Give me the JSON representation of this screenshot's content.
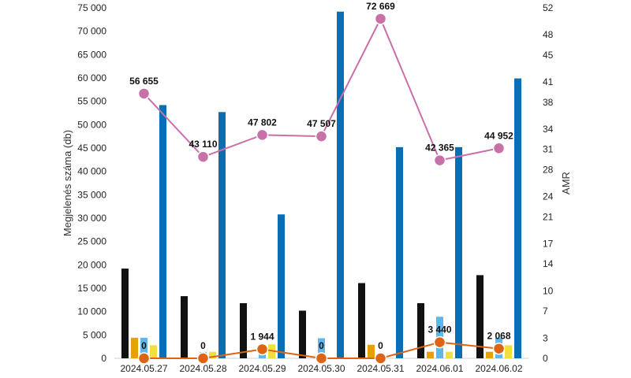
{
  "chart_data": {
    "type": "bar",
    "categories": [
      "2024.05.27",
      "2024.05.28",
      "2024.05.29",
      "2024.05.30",
      "2024.05.31",
      "2024.06.01",
      "2024.06.02"
    ],
    "ylabel": "Megjelenés száma (db)",
    "y2label": "AMR",
    "ylim": [
      0,
      75000
    ],
    "y2lim": [
      0,
      52
    ],
    "yticks": [
      0,
      5000,
      10000,
      15000,
      20000,
      25000,
      30000,
      35000,
      40000,
      45000,
      50000,
      55000,
      60000,
      65000,
      70000,
      75000
    ],
    "ytick_labels": [
      "0",
      "5 000",
      "10 000",
      "15 000",
      "20 000",
      "25 000",
      "30 000",
      "35 000",
      "40 000",
      "45 000",
      "50 000",
      "55 000",
      "60 000",
      "65 000",
      "70 000",
      "75 000"
    ],
    "y2ticks": [
      0,
      3,
      7,
      10,
      14,
      17,
      21,
      24,
      28,
      31,
      34,
      38,
      41,
      45,
      48,
      52
    ],
    "grid": false,
    "bar_series": [
      {
        "color": "#111111",
        "values": [
          19200,
          13300,
          11800,
          10200,
          16100,
          11800,
          17800
        ]
      },
      {
        "color": "#e6a100",
        "values": [
          4400,
          0,
          0,
          0,
          2900,
          1400,
          1400
        ]
      },
      {
        "color": "#5bb8e8",
        "values": [
          4400,
          1300,
          1100,
          4300,
          0,
          8900,
          4400
        ]
      },
      {
        "color": "#f2e03a",
        "values": [
          2800,
          1400,
          3000,
          0,
          0,
          1400,
          2800
        ]
      },
      {
        "color": "#0a6eb4",
        "values": [
          54200,
          52700,
          30800,
          74200,
          45200,
          45200,
          59900
        ]
      }
    ],
    "line_series": [
      {
        "color": "#c870a8",
        "values": [
          56655,
          43110,
          47802,
          47507,
          72669,
          42365,
          44952
        ],
        "labels": [
          "56 655",
          "43 110",
          "47 802",
          "47 507",
          "72 669",
          "42 365",
          "44 952"
        ]
      },
      {
        "color": "#dc6414",
        "values": [
          0,
          0,
          1944,
          0,
          0,
          3440,
          2068
        ],
        "labels": [
          "0",
          "0",
          "1 944",
          "0",
          "0",
          "3 440",
          "2 068"
        ]
      }
    ]
  }
}
